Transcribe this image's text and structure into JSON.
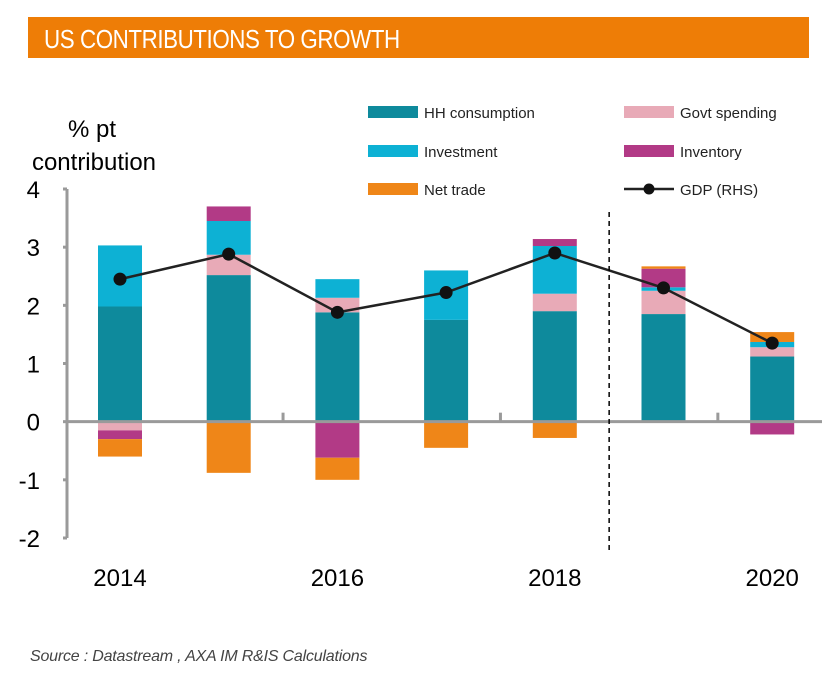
{
  "title": "US CONTRIBUTIONS TO GROWTH",
  "source": "Source : Datastream , AXA IM R&IS Calculations",
  "chart_data": {
    "type": "bar",
    "stacked": true,
    "ylabel_line1": "% pt",
    "ylabel_line2": "contribution",
    "ylim": [
      -2,
      4
    ],
    "yticks": [
      "4",
      "3",
      "2",
      "1",
      "0",
      "-1",
      "-2"
    ],
    "ytick_values": [
      4,
      3,
      2,
      1,
      0,
      -1,
      -2
    ],
    "x_tick_labels": [
      "2014",
      "2016",
      "2018",
      "2020"
    ],
    "x_tick_years": [
      2014,
      2016,
      2018,
      2020
    ],
    "categories": [
      2014,
      2015,
      2016,
      2017,
      2018,
      2019,
      2020
    ],
    "forecast_divider_after": 2018,
    "series": [
      {
        "name": "HH consumption",
        "color": "#0E8A9C",
        "values": [
          1.98,
          2.52,
          1.88,
          1.75,
          1.9,
          1.85,
          1.12
        ]
      },
      {
        "name": "Govt spending",
        "color": "#E8AAB7",
        "values": [
          -0.15,
          0.35,
          0.25,
          0.0,
          0.3,
          0.4,
          0.16
        ]
      },
      {
        "name": "Investment",
        "color": "#0DB1D4",
        "values": [
          1.05,
          0.58,
          0.32,
          0.85,
          0.82,
          0.06,
          0.09
        ]
      },
      {
        "name": "Inventory",
        "color": "#B23A86",
        "values": [
          -0.15,
          0.25,
          -0.62,
          0.0,
          0.12,
          0.32,
          -0.22
        ]
      },
      {
        "name": "Net trade",
        "color": "#EF8618",
        "values": [
          -0.3,
          -0.88,
          -0.38,
          -0.45,
          -0.28,
          0.04,
          0.17
        ]
      }
    ],
    "line_series": {
      "name": "GDP (RHS)",
      "color": "#222222",
      "values": [
        2.45,
        2.88,
        1.88,
        2.22,
        2.9,
        2.3,
        1.35
      ]
    },
    "legend": {
      "placement": "top",
      "columns": 2
    }
  }
}
